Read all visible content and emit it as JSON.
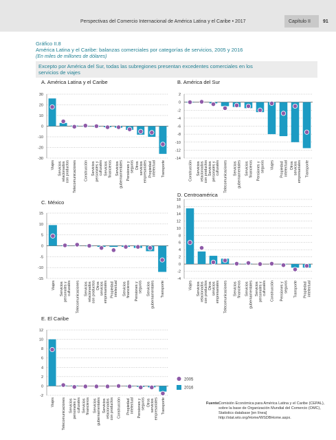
{
  "header": {
    "running_title": "Perspectivas del Comercio Internacional de América Latina y el Caribe • 2017",
    "chapter": "Capítulo II",
    "page": "91"
  },
  "figure": {
    "label": "Gráfico II.8",
    "title": "América Latina y el Caribe: balanzas comerciales por categorías de servicios, 2005 y 2016",
    "subtitle": "(En miles de millones de dólares)",
    "highlight": "Excepto por América del Sur, todas las subregiones presentan excedentes comerciales en los servicios de viajes",
    "source_label": "Fuente:",
    "source": "Comisión Económica para América Latina y el Caribe (CEPAL), sobre la base de Organización Mundial del Comercio (OMC), Statistics database [en línea] http://stat.wto.org/Home/WSDBHome.aspx."
  },
  "chart_data": [
    {
      "type": "bar",
      "title": "A. América Latina y el Caribe",
      "categories": [
        "Viajes",
        "Servicios relacionados con productos",
        "Telecomunicaciones",
        "Construcción",
        "Servicios personales y culturales",
        "Servicios financieros",
        "Servicios gubernamentales",
        "Pensiones y seguros",
        "Otros servicios empresariales",
        "Propiedad intelectual",
        "Transporte"
      ],
      "series": [
        {
          "name": "2005",
          "color": "#8e5aa8",
          "style": "dot",
          "values": [
            18,
            4.5,
            -0.5,
            0.5,
            0,
            -1,
            -1,
            -3,
            -5,
            -6,
            -17
          ]
        },
        {
          "name": "2016",
          "color": "#1c9bc3",
          "style": "bar",
          "values": [
            26,
            3,
            0.5,
            0.3,
            -0.5,
            -1,
            -1.5,
            -3.5,
            -8,
            -10,
            -26
          ]
        }
      ],
      "ylim": [
        -30,
        30
      ],
      "yticks": [
        -30,
        -20,
        -10,
        0,
        10,
        20,
        30
      ],
      "grid": true
    },
    {
      "type": "bar",
      "title": "B. América del Sur",
      "categories": [
        "Construcción",
        "Servicios relacionados con productos",
        "Servicios personales y culturales",
        "Telecomunicaciones",
        "Servicios gubernamentales",
        "Servicios financieros",
        "Pensiones y seguros",
        "Viajes",
        "Propiedad intelectual",
        "Otros servicios empresariales",
        "Transporte"
      ],
      "series": [
        {
          "name": "2005",
          "color": "#8e5aa8",
          "style": "dot",
          "values": [
            0,
            0.1,
            -0.5,
            -1.5,
            -0.8,
            -1,
            -2,
            -0.3,
            -2.8,
            -1,
            -7.5
          ]
        },
        {
          "name": "2016",
          "color": "#1c9bc3",
          "style": "bar",
          "values": [
            0.1,
            0,
            -0.3,
            -1,
            -1.2,
            -1.5,
            -2.5,
            -8,
            -8.5,
            -10,
            -11.5
          ]
        }
      ],
      "ylim": [
        -14,
        2
      ],
      "yticks": [
        -14,
        -12,
        -10,
        -8,
        -6,
        -4,
        -2,
        0,
        2
      ],
      "grid": true
    },
    {
      "type": "bar",
      "title": "C. México",
      "categories": [
        "Viajes",
        "Servicios personales y culturales",
        "Telecomunicaciones",
        "Servicios relacionados con productos",
        "Otros servicios empresariales",
        "Propiedad intelectual",
        "Servicios financieros",
        "Pensiones y seguros",
        "Servicios gubernamentales",
        "Transporte"
      ],
      "series": [
        {
          "name": "2005",
          "color": "#8e5aa8",
          "style": "dot",
          "values": [
            4.5,
            0.2,
            0.5,
            0,
            -1,
            -2,
            -0.5,
            -0.5,
            -1,
            -6.5
          ]
        },
        {
          "name": "2016",
          "color": "#1c9bc3",
          "style": "bar",
          "values": [
            9.5,
            0.2,
            0.1,
            -0.2,
            -0.5,
            -0.5,
            -0.5,
            -1,
            -2.5,
            -12
          ]
        }
      ],
      "ylim": [
        -15,
        15
      ],
      "yticks": [
        -15,
        -10,
        -5,
        0,
        5,
        10,
        15
      ],
      "grid": true
    },
    {
      "type": "bar",
      "title": "D. Centroamérica",
      "categories": [
        "Viajes",
        "Servicios relacionados con productos",
        "Otros servicios empresariales",
        "Telecomunicaciones",
        "Servicios financieros",
        "Servicios gubernamentales",
        "Servicios personales y culturales",
        "Construcción",
        "Pensiones y seguros",
        "Transporte",
        "Propiedad intelectual"
      ],
      "series": [
        {
          "name": "2005",
          "color": "#8e5aa8",
          "style": "dot",
          "values": [
            6,
            4.5,
            0.5,
            1,
            0.1,
            0.3,
            0,
            0.1,
            -0.3,
            -1.5,
            -0.5
          ]
        },
        {
          "name": "2016",
          "color": "#1c9bc3",
          "style": "bar",
          "values": [
            15.5,
            3.5,
            2.3,
            1.5,
            0.1,
            0.1,
            0,
            0,
            -0.1,
            -1,
            -1
          ]
        }
      ],
      "ylim": [
        -4,
        18
      ],
      "yticks": [
        -4,
        -2,
        0,
        2,
        4,
        6,
        8,
        10,
        12,
        14,
        16,
        18
      ],
      "grid": true
    },
    {
      "type": "bar",
      "title": "E. El Caribe",
      "categories": [
        "Viajes",
        "Telecomunicaciones",
        "Servicios personales y culturales",
        "Servicios financieros",
        "Servicios gubernamentales",
        "Servicios relacionados con productos",
        "Construcción",
        "Propiedad intelectual",
        "Pensiones y seguros",
        "Otros servicios empresariales",
        "Transporte"
      ],
      "series": [
        {
          "name": "2005",
          "color": "#8e5aa8",
          "style": "dot",
          "values": [
            7.8,
            0.2,
            -0.2,
            -0.1,
            -0.1,
            -0.1,
            0,
            -0.1,
            -0.3,
            -0.3,
            -1.6
          ]
        },
        {
          "name": "2016",
          "color": "#1c9bc3",
          "style": "bar",
          "values": [
            10,
            0.1,
            0.1,
            0,
            0,
            0,
            0,
            -0.1,
            -0.2,
            -0.3,
            -1.2
          ]
        }
      ],
      "ylim": [
        -2,
        12
      ],
      "yticks": [
        -2,
        0,
        2,
        4,
        6,
        8,
        10,
        12
      ],
      "grid": true
    }
  ]
}
